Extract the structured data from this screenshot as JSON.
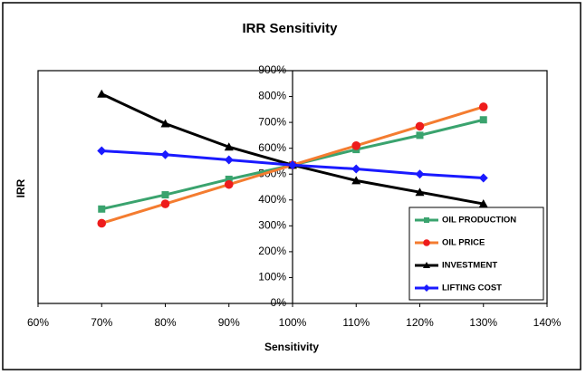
{
  "chart_data": {
    "type": "line",
    "title": "IRR Sensitivity",
    "x_label": "Sensitivity",
    "y_label": "IRR",
    "x": [
      70,
      80,
      90,
      100,
      110,
      120,
      130
    ],
    "xlim": [
      60,
      140
    ],
    "xticks": [
      {
        "value": 60,
        "label": "60%"
      },
      {
        "value": 70,
        "label": "70%"
      },
      {
        "value": 80,
        "label": "80%"
      },
      {
        "value": 90,
        "label": "90%"
      },
      {
        "value": 100,
        "label": "100%"
      },
      {
        "value": 110,
        "label": "110%"
      },
      {
        "value": 120,
        "label": "120%"
      },
      {
        "value": 130,
        "label": "130%"
      },
      {
        "value": 140,
        "label": "140%"
      }
    ],
    "ylim": [
      0,
      900
    ],
    "yticks": [
      {
        "value": 0,
        "label": "0%"
      },
      {
        "value": 100,
        "label": "100%"
      },
      {
        "value": 200,
        "label": "200%"
      },
      {
        "value": 300,
        "label": "300%"
      },
      {
        "value": 400,
        "label": "400%"
      },
      {
        "value": 500,
        "label": "500%"
      },
      {
        "value": 600,
        "label": "600%"
      },
      {
        "value": 700,
        "label": "700%"
      },
      {
        "value": 800,
        "label": "800%"
      },
      {
        "value": 900,
        "label": "900%"
      }
    ],
    "y_axis_at_x": 100,
    "legend": "lower right",
    "series": [
      {
        "name": "OIL PRODUCTION",
        "color": "#3aa36e",
        "marker": "square",
        "marker_color": "#3aa36e",
        "values": [
          365,
          420,
          480,
          535,
          595,
          650,
          710
        ]
      },
      {
        "name": "OIL PRICE",
        "color": "#f47c30",
        "marker": "circle",
        "marker_color": "#ee1c1c",
        "values": [
          310,
          385,
          460,
          535,
          610,
          685,
          760
        ]
      },
      {
        "name": "INVESTMENT",
        "color": "#000000",
        "marker": "triangle",
        "marker_color": "#000000",
        "values": [
          810,
          695,
          605,
          535,
          475,
          430,
          385
        ]
      },
      {
        "name": "LIFTING COST",
        "color": "#1a1aff",
        "marker": "diamond",
        "marker_color": "#1a1aff",
        "values": [
          590,
          575,
          555,
          535,
          520,
          500,
          485
        ]
      }
    ]
  }
}
